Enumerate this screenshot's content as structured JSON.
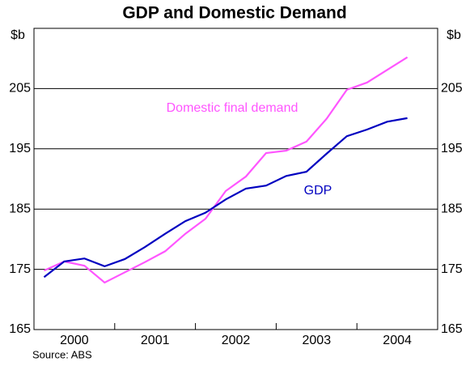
{
  "chart_data": {
    "type": "line",
    "title": "GDP and Domestic Demand",
    "y_unit_left": "$b",
    "y_unit_right": "$b",
    "source": "Source: ABS",
    "year_labels": [
      "2000",
      "2001",
      "2002",
      "2003",
      "2004"
    ],
    "series": [
      {
        "name": "Domestic final demand",
        "color": "#ff55ff",
        "values": [
          174.8,
          176.3,
          175.6,
          172.8,
          174.5,
          176.2,
          178.0,
          180.9,
          183.4,
          188.0,
          190.4,
          194.3,
          194.7,
          196.2,
          200.0,
          204.8,
          206.0,
          208.1,
          210.2
        ]
      },
      {
        "name": "GDP",
        "color": "#0000c0",
        "values": [
          173.7,
          176.3,
          176.8,
          175.5,
          176.7,
          178.7,
          180.9,
          183.0,
          184.4,
          186.6,
          188.4,
          188.9,
          190.5,
          191.2,
          194.2,
          197.1,
          198.2,
          199.5,
          200.1
        ]
      }
    ],
    "ylim": [
      165,
      215
    ],
    "yticks": [
      165,
      175,
      185,
      195,
      205
    ],
    "grid": true
  }
}
